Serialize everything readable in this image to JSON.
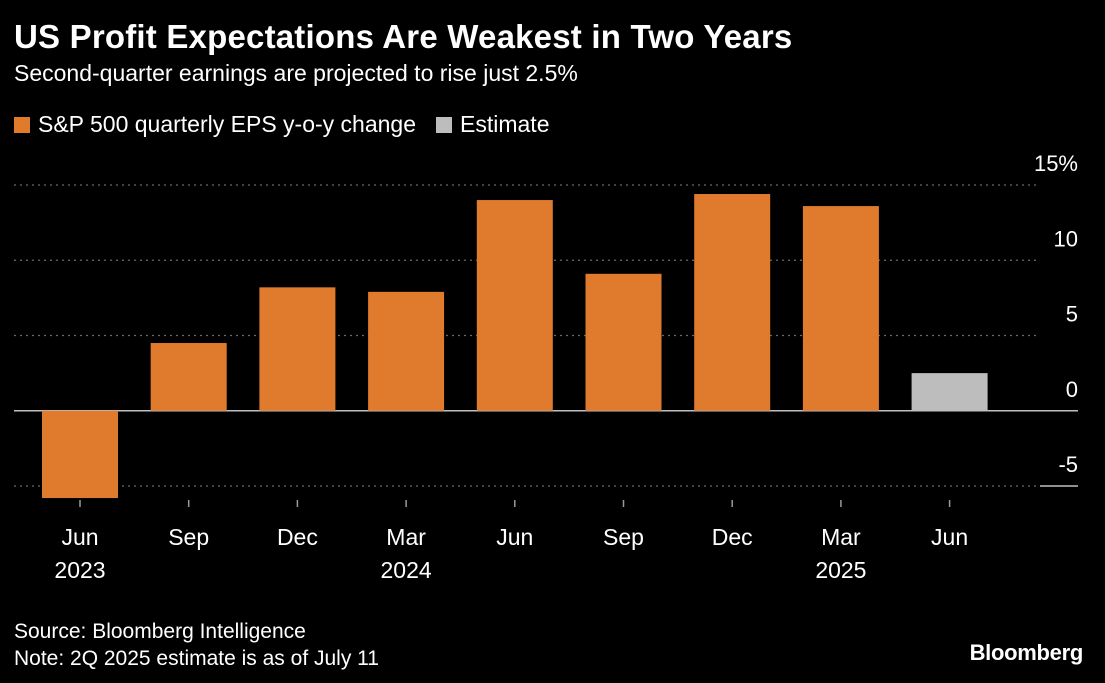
{
  "header": {
    "title": "US Profit Expectations Are Weakest in Two Years",
    "subtitle": "Second-quarter earnings are projected to rise just 2.5%"
  },
  "legend": {
    "items": [
      {
        "label": "S&P 500 quarterly EPS y-o-y change",
        "color": "#E07B2E"
      },
      {
        "label": "Estimate",
        "color": "#BDBDBD"
      }
    ]
  },
  "footer": {
    "source": "Source: Bloomberg Intelligence",
    "note": "Note: 2Q 2025 estimate is as of July 11",
    "brand": "Bloomberg"
  },
  "chart_data": {
    "type": "bar",
    "title": "US Profit Expectations Are Weakest in Two Years",
    "subtitle": "Second-quarter earnings are projected to rise just 2.5%",
    "xlabel": "",
    "ylabel": "",
    "categories": [
      "Jun 2023",
      "Sep 2023",
      "Dec 2023",
      "Mar 2024",
      "Jun 2024",
      "Sep 2024",
      "Dec 2024",
      "Mar 2025",
      "Jun 2025"
    ],
    "x_tick_labels": [
      {
        "month": "Jun",
        "year": "2023"
      },
      {
        "month": "Sep",
        "year": ""
      },
      {
        "month": "Dec",
        "year": ""
      },
      {
        "month": "Mar",
        "year": "2024"
      },
      {
        "month": "Jun",
        "year": ""
      },
      {
        "month": "Sep",
        "year": ""
      },
      {
        "month": "Dec",
        "year": ""
      },
      {
        "month": "Mar",
        "year": "2025"
      },
      {
        "month": "Jun",
        "year": ""
      }
    ],
    "series": [
      {
        "name": "S&P 500 quarterly EPS y-o-y change",
        "color": "#E07B2E",
        "values": [
          -5.8,
          4.5,
          8.2,
          7.9,
          14.0,
          9.1,
          14.4,
          13.6,
          null
        ]
      },
      {
        "name": "Estimate",
        "color": "#BDBDBD",
        "values": [
          null,
          null,
          null,
          null,
          null,
          null,
          null,
          null,
          2.5
        ]
      }
    ],
    "ylim": [
      -5,
      15
    ],
    "yticks": [
      15,
      10,
      5,
      0,
      -5
    ],
    "ytick_labels": [
      "15%",
      "10",
      "5",
      "0",
      "-5"
    ],
    "grid": true,
    "legend_position": "top-left"
  }
}
